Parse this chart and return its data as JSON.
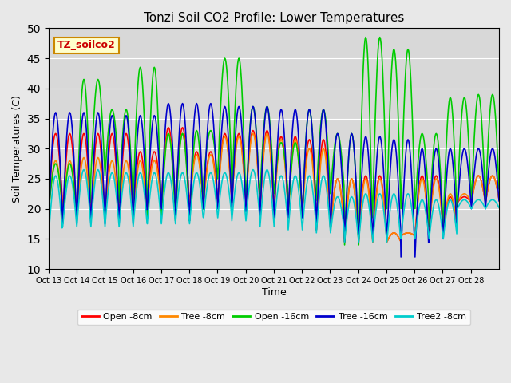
{
  "title": "Tonzi Soil CO2 Profile: Lower Temperatures",
  "xlabel": "Time",
  "ylabel": "Soil Temperatures (C)",
  "ylim": [
    10,
    50
  ],
  "background_color": "#e8e8e8",
  "plot_bg_color": "#d8d8d8",
  "watermark_text": "TZ_soilco2",
  "legend_labels": [
    "Open -8cm",
    "Tree -8cm",
    "Open -16cm",
    "Tree -16cm",
    "Tree2 -8cm"
  ],
  "legend_colors": [
    "#ff0000",
    "#ff8800",
    "#00cc00",
    "#0000cc",
    "#00cccc"
  ],
  "xtick_labels": [
    "Oct 13",
    "Oct 14",
    "Oct 15",
    "Oct 16",
    "Oct 17",
    "Oct 18",
    "Oct 19",
    "Oct 20",
    "Oct 21",
    "Oct 22",
    "Oct 23",
    "Oct 24",
    "Oct 25",
    "Oct 26",
    "Oct 27",
    "Oct 28"
  ],
  "n_days": 16,
  "series": {
    "open8": {
      "color": "#ff0000",
      "peaks": [
        32.5,
        32.5,
        32.5,
        29.5,
        33.5,
        29.5,
        32.5,
        33.0,
        32.0,
        31.5,
        25.0,
        25.5,
        16.0,
        25.5,
        22.0,
        25.5
      ],
      "troughs": [
        20.5,
        18.5,
        18.5,
        18.5,
        21.0,
        20.5,
        21.5,
        21.5,
        20.0,
        19.5,
        16.5,
        15.0,
        14.5,
        15.5,
        17.0,
        21.0
      ]
    },
    "tree8": {
      "color": "#ff8800",
      "peaks": [
        28.0,
        28.5,
        28.0,
        28.0,
        32.5,
        29.0,
        32.0,
        32.5,
        31.5,
        30.0,
        25.0,
        25.0,
        16.0,
        25.0,
        22.5,
        25.5
      ],
      "troughs": [
        19.5,
        18.0,
        18.0,
        18.0,
        20.5,
        20.0,
        21.0,
        21.0,
        19.5,
        19.0,
        16.5,
        14.5,
        14.5,
        15.5,
        16.5,
        21.0
      ]
    },
    "open16": {
      "color": "#00cc00",
      "peaks": [
        27.5,
        41.5,
        36.5,
        43.5,
        32.5,
        33.0,
        45.0,
        37.0,
        31.0,
        36.5,
        32.5,
        48.5,
        46.5,
        32.5,
        38.5,
        39.0
      ],
      "troughs": [
        19.5,
        18.0,
        25.5,
        21.0,
        18.5,
        18.0,
        25.0,
        21.0,
        22.5,
        19.0,
        22.5,
        14.0,
        20.0,
        20.0,
        17.0,
        21.0
      ]
    },
    "tree16": {
      "color": "#0000cc",
      "peaks": [
        36.0,
        36.0,
        35.5,
        35.5,
        37.5,
        37.5,
        37.0,
        37.0,
        36.5,
        36.5,
        32.5,
        32.0,
        31.5,
        30.0,
        30.0,
        30.0
      ],
      "troughs": [
        17.5,
        17.5,
        17.5,
        17.5,
        20.0,
        18.0,
        20.0,
        19.5,
        18.5,
        18.5,
        16.5,
        14.5,
        15.0,
        12.0,
        15.0,
        20.0
      ]
    },
    "tree2_8": {
      "color": "#00cccc",
      "peaks": [
        25.5,
        26.5,
        26.0,
        26.0,
        26.0,
        26.0,
        26.0,
        26.5,
        25.5,
        25.5,
        22.0,
        22.5,
        22.5,
        21.5,
        21.5,
        21.5
      ],
      "troughs": [
        15.5,
        17.0,
        17.0,
        17.0,
        17.5,
        17.5,
        18.5,
        18.0,
        17.0,
        16.5,
        16.0,
        14.5,
        14.5,
        15.0,
        15.0,
        20.0
      ]
    }
  }
}
